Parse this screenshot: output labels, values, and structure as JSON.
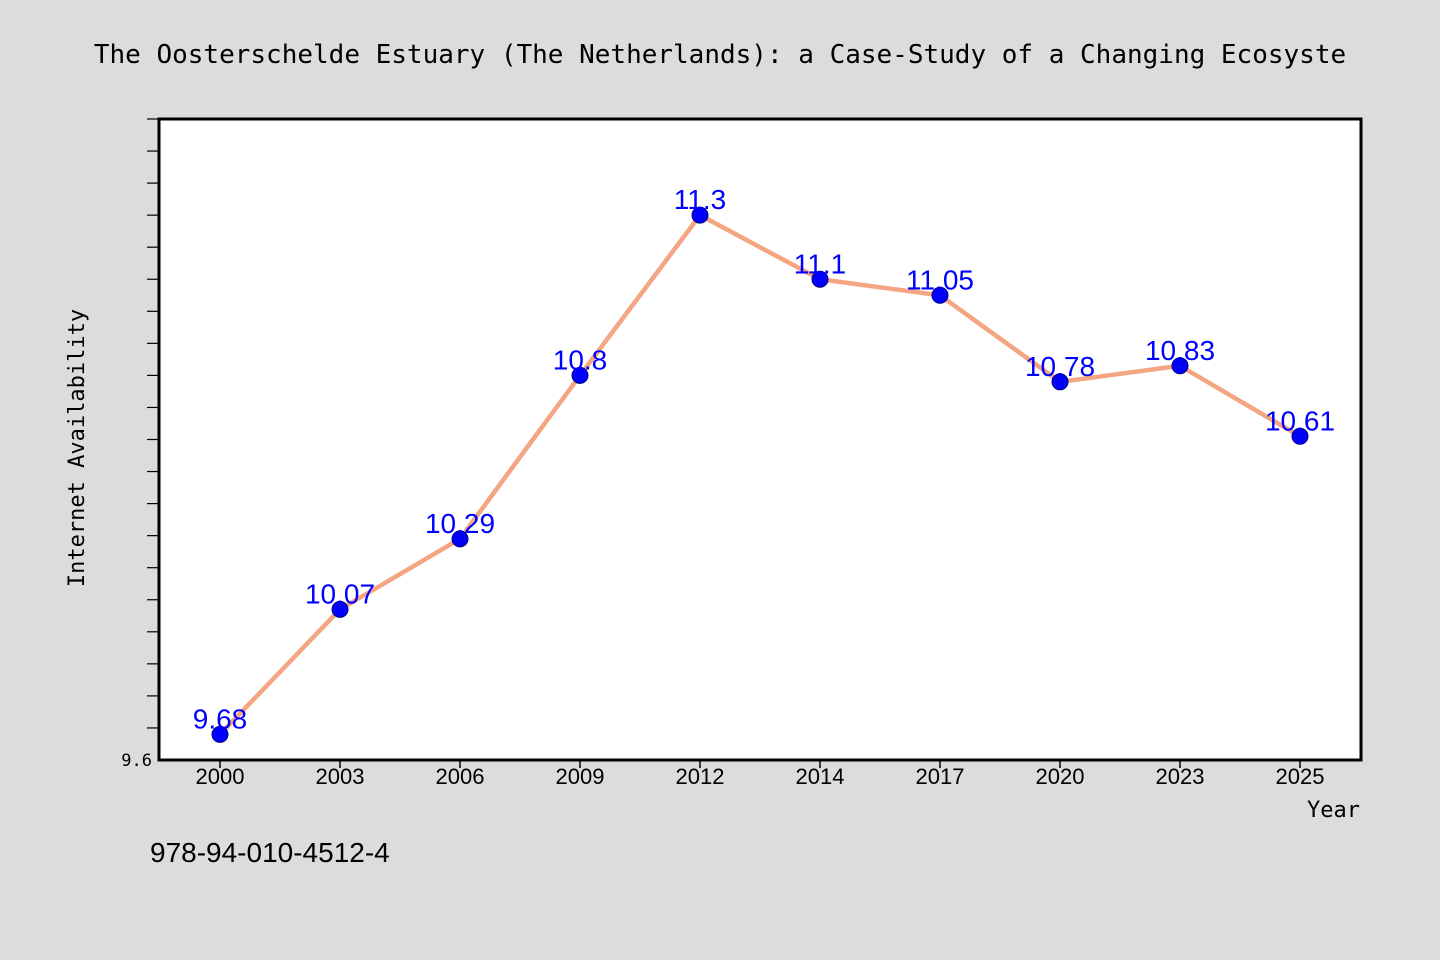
{
  "chart_data": {
    "type": "line",
    "title": "The Oosterschelde Estuary (The Netherlands): a Case-Study of a Changing Ecosyste",
    "xlabel": "Year",
    "ylabel": "Internet Availability",
    "categories": [
      "2000",
      "2003",
      "2006",
      "2009",
      "2012",
      "2014",
      "2017",
      "2020",
      "2023",
      "2025"
    ],
    "series": [
      {
        "values": [
          9.68,
          10.07,
          10.29,
          10.8,
          11.3,
          11.1,
          11.05,
          10.78,
          10.83,
          10.61
        ],
        "data_labels": [
          "9.68",
          "10.07",
          "10.29",
          "10.8",
          "11.3",
          "11.1",
          "11.05",
          "10.78",
          "10.83",
          "10.61"
        ],
        "line_color": "#f4a582",
        "marker_color": "#0000ff",
        "label_color": "#0000ff"
      }
    ],
    "ylim": [
      9.6,
      11.6
    ],
    "y_tick_labels": [
      "9.6"
    ],
    "y_minor_ticks": 20,
    "grid": false,
    "legend": "none"
  },
  "footnote": "978-94-010-4512-4"
}
